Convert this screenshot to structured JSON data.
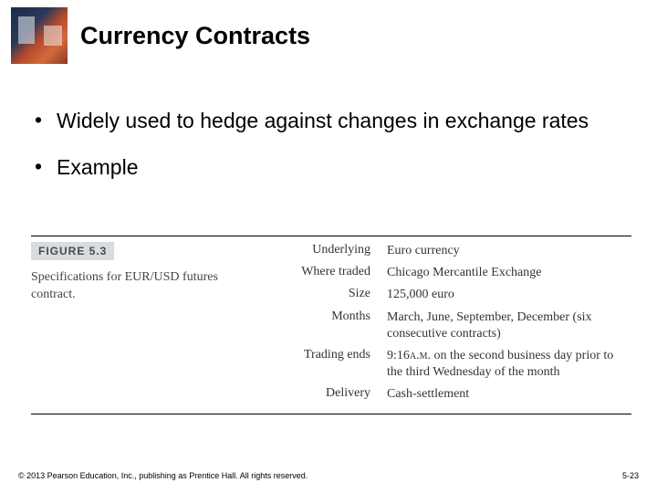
{
  "slide": {
    "title": "Currency Contracts",
    "bullets": [
      "Widely used to hedge against changes in exchange rates",
      "Example"
    ]
  },
  "figure": {
    "tag": "FIGURE 5.3",
    "caption": "Specifications for EUR/USD futures contract.",
    "rows": [
      {
        "key": "Underlying",
        "val": "Euro currency"
      },
      {
        "key": "Where traded",
        "val": "Chicago Mercantile Exchange"
      },
      {
        "key": "Size",
        "val": "125,000 euro"
      },
      {
        "key": "Months",
        "val": "March, June, September, December (six consecutive contracts)"
      },
      {
        "key": "Trading ends",
        "val": "9:16 A.M. on the second business day prior to the third Wednesday of the month"
      },
      {
        "key": "Delivery",
        "val": "Cash-settlement"
      }
    ]
  },
  "footer": {
    "copyright": "© 2013 Pearson Education, Inc., publishing as Prentice Hall.  All rights reserved.",
    "pagenum": "5-23"
  },
  "colors": {
    "text": "#000000",
    "fig_tag_bg": "#d7dce0",
    "fig_text": "#333333",
    "rule": "#000000"
  }
}
